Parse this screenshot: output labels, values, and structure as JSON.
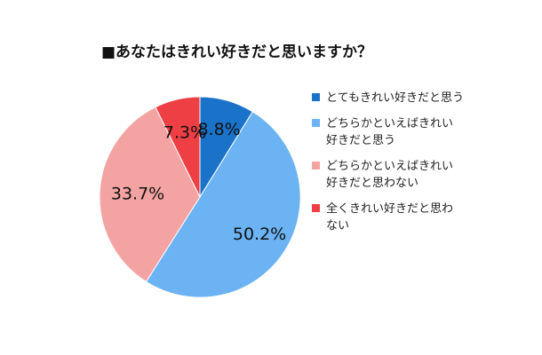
{
  "chart_data": {
    "type": "pie",
    "title": "■あなたはきれい好きだと思いますか？",
    "categories": [
      "とてもきれい好きだと思う",
      "どちらかといえばきれい好きだと思う",
      "どちらかといえばきれい好きだと思わない",
      "全くきれい好きだと思わない"
    ],
    "values": [
      8.8,
      50.2,
      33.7,
      7.3
    ],
    "data_labels": [
      "8.8%",
      "50.2%",
      "33.7%",
      "7.3%"
    ],
    "colors": [
      "#1a73c8",
      "#6bb3f2",
      "#f4a3a3",
      "#ee3f44"
    ],
    "legend_position": "right",
    "start": "12 o'clock, clockwise"
  }
}
